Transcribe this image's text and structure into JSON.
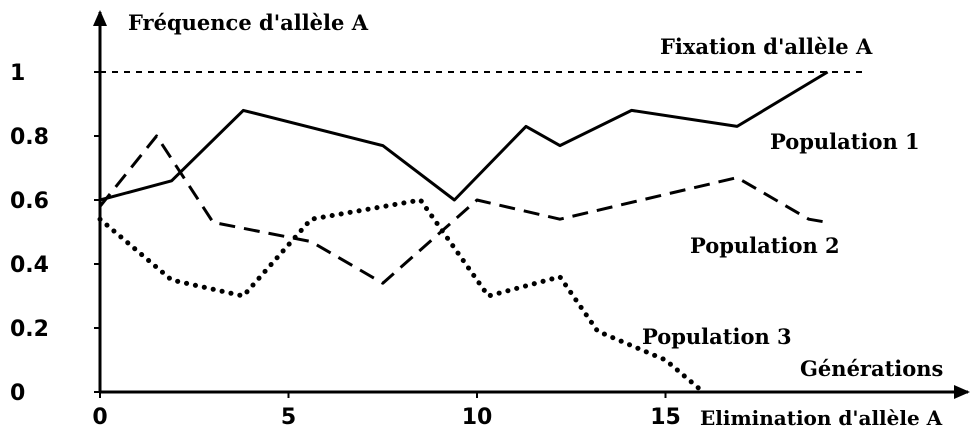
{
  "chart_data": {
    "type": "line",
    "title": "",
    "ylabel": "Fréquence d'allèle A",
    "xlabel": "Générations",
    "xlim": [
      0,
      20
    ],
    "ylim": [
      0,
      1
    ],
    "x_ticks": [
      "0",
      "5",
      "10",
      "15"
    ],
    "y_ticks": [
      "0",
      "0.2",
      "0.4",
      "0.6",
      "0.8",
      "1"
    ],
    "grid": false,
    "annotations": {
      "fixation": "Fixation d'allèle A",
      "elimination": "Elimination d'allèle A"
    },
    "series": [
      {
        "name": "Population 1",
        "style": "solid",
        "color": "#000000",
        "x": [
          0,
          1.9,
          3.8,
          7.5,
          9.4,
          11.3,
          12.2,
          14.1,
          16.9,
          19.3
        ],
        "y": [
          0.6,
          0.66,
          0.88,
          0.77,
          0.6,
          0.83,
          0.77,
          0.88,
          0.83,
          1.0
        ]
      },
      {
        "name": "Population 2",
        "style": "dashed",
        "color": "#000000",
        "x": [
          0,
          1.5,
          3.0,
          5.6,
          7.5,
          10.0,
          12.2,
          16.9,
          18.8,
          19.3
        ],
        "y": [
          0.58,
          0.8,
          0.53,
          0.47,
          0.34,
          0.6,
          0.54,
          0.67,
          0.54,
          0.53
        ]
      },
      {
        "name": "Population 3",
        "style": "dotted",
        "color": "#000000",
        "x": [
          0,
          1.9,
          3.8,
          5.6,
          8.5,
          9.4,
          10.3,
          12.2,
          13.2,
          15.0,
          16.0
        ],
        "y": [
          0.54,
          0.35,
          0.3,
          0.54,
          0.6,
          0.45,
          0.3,
          0.36,
          0.19,
          0.1,
          0.0
        ]
      }
    ]
  }
}
